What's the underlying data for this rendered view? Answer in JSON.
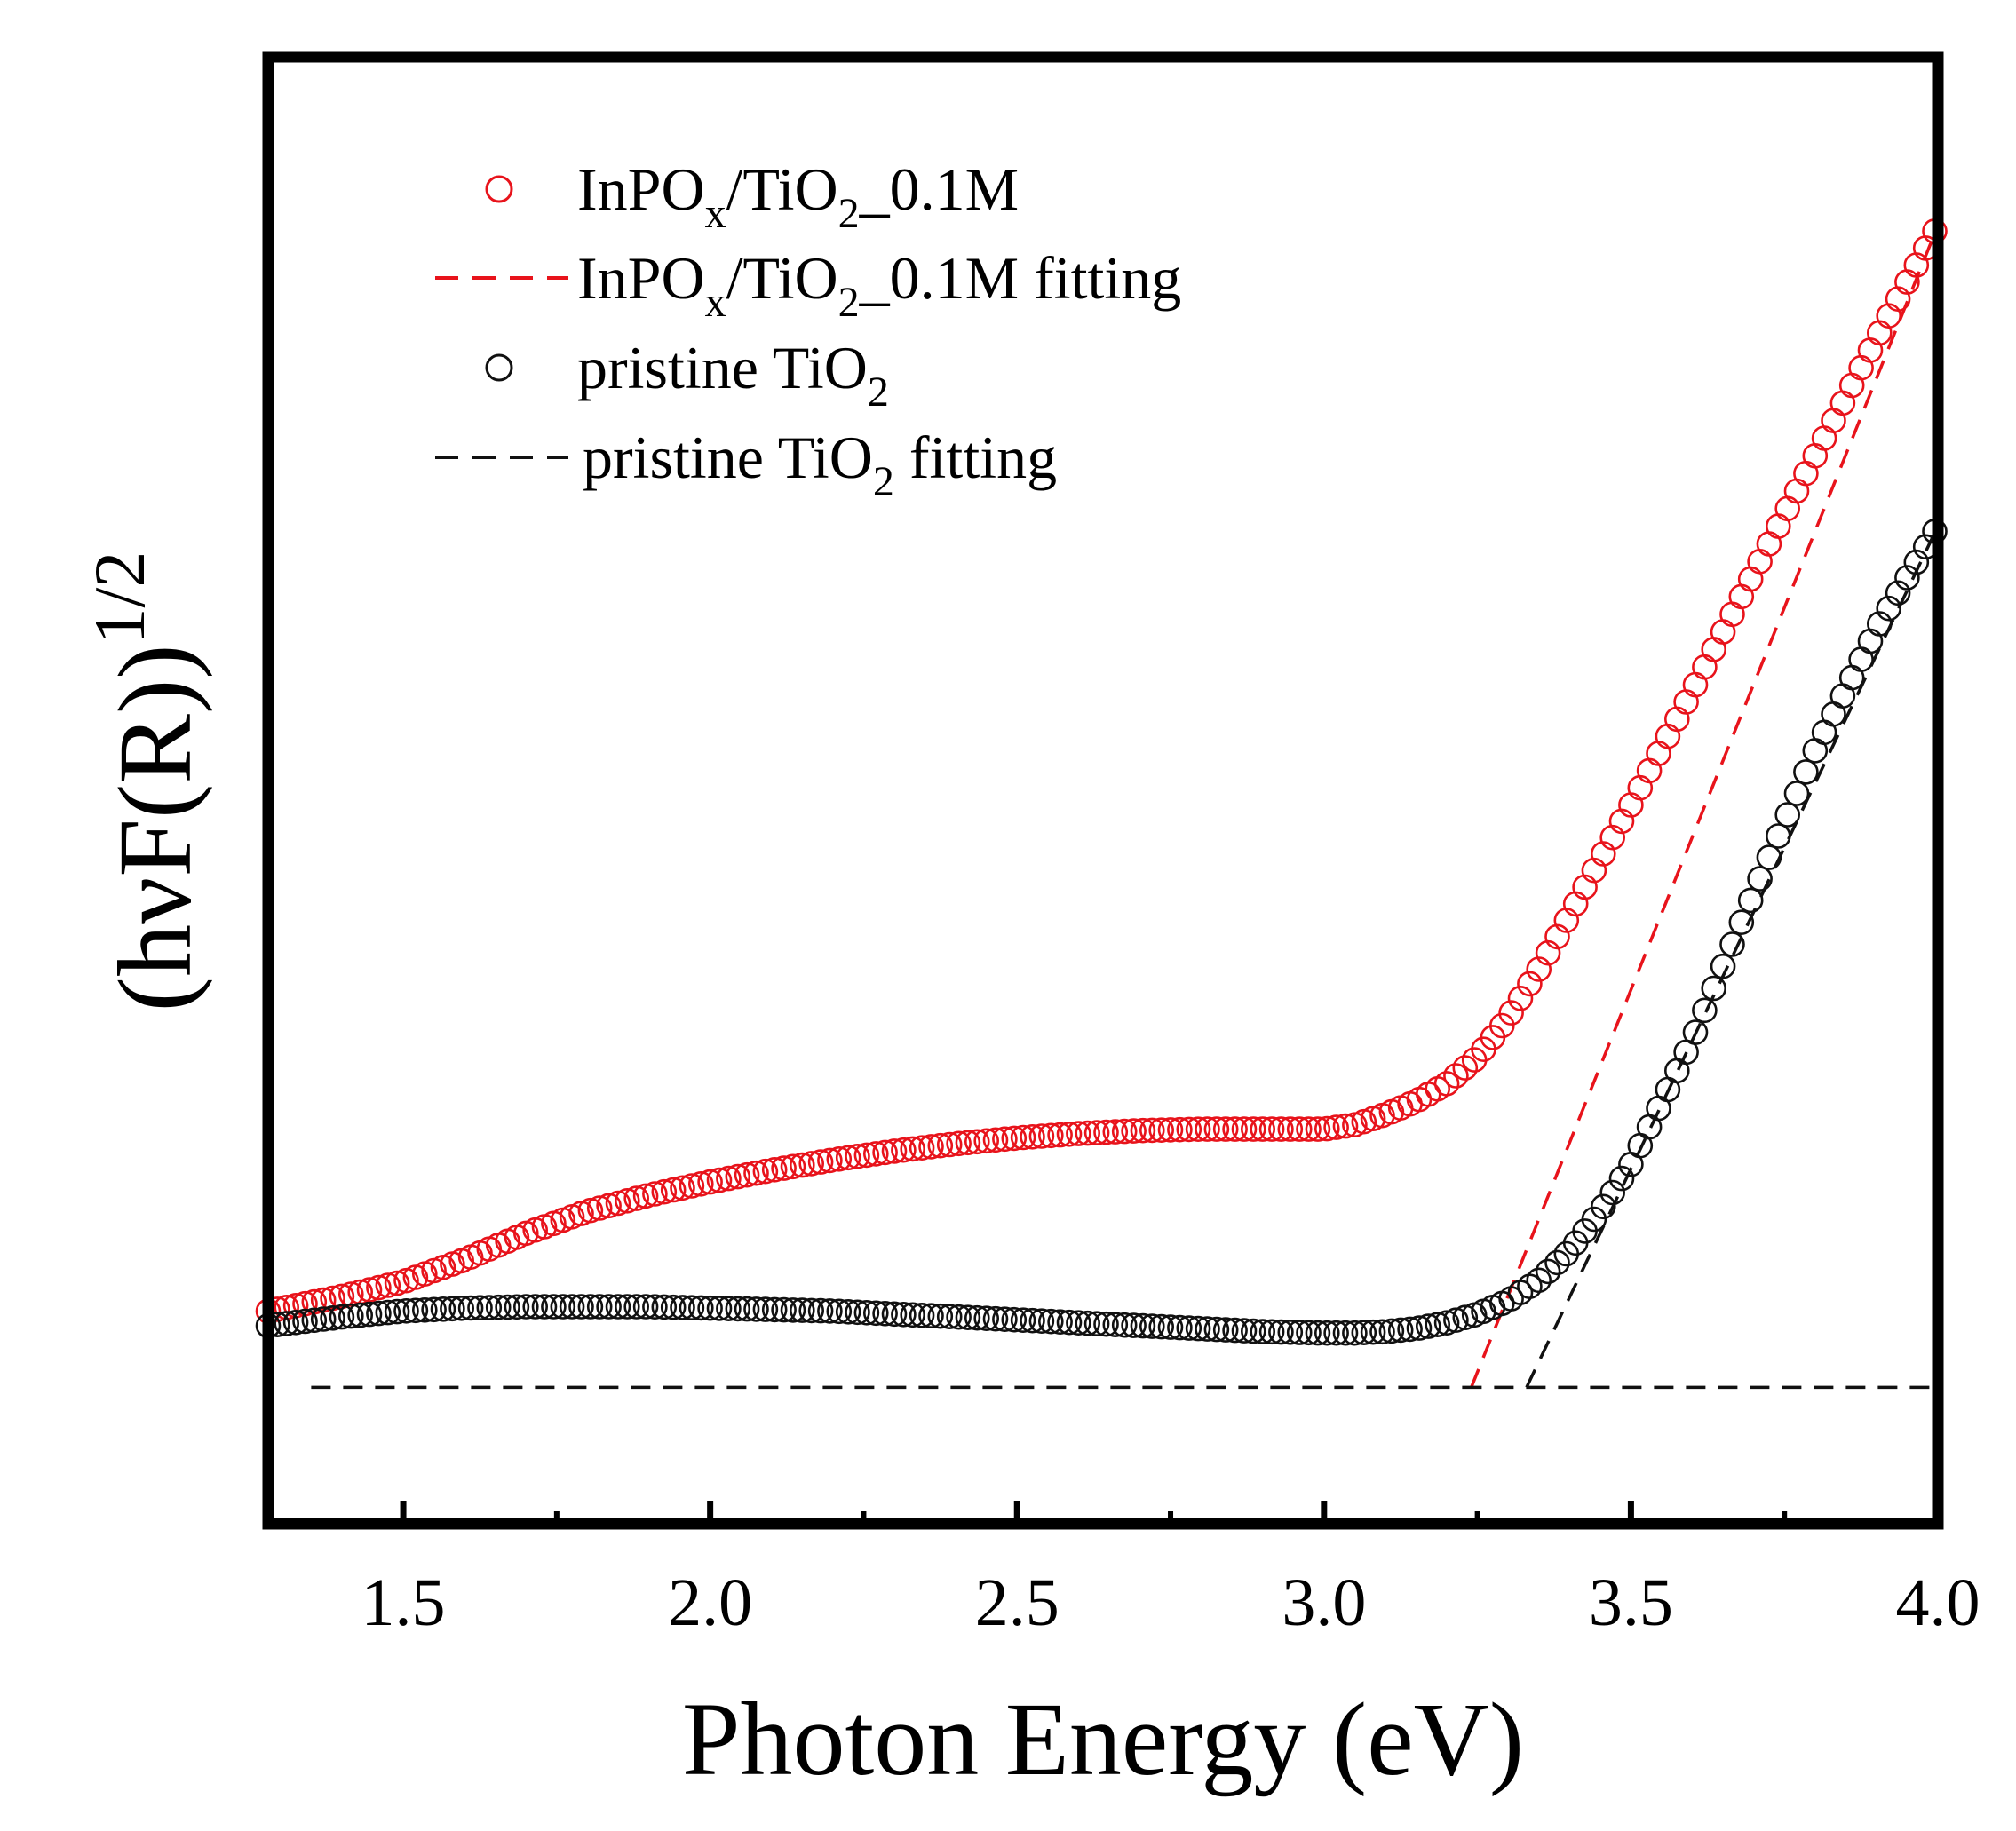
{
  "chart_data": {
    "type": "scatter",
    "title": "",
    "xlabel": "Photon Energy (eV)",
    "ylabel": {
      "main": "(hνF(R))",
      "superscript": "1/2"
    },
    "xlim": [
      1.28,
      4.0
    ],
    "ylim": [
      0,
      1.0
    ],
    "x_major_ticks": [
      1.5,
      2.0,
      2.5,
      3.0,
      3.5,
      4.0
    ],
    "x_tick_labels": [
      "1.5",
      "2.0",
      "2.5",
      "3.0",
      "3.5",
      "4.0"
    ],
    "x_minor_ticks": [
      1.75,
      2.25,
      2.75,
      3.25,
      3.75
    ],
    "y_tick_labels_shown": false,
    "grid": false,
    "legend_position": "top-left",
    "colors": {
      "red": "#e8131b",
      "black": "#111111"
    },
    "series": [
      {
        "name": "InPOx/TiO2_0.1M",
        "marker": "open-circle",
        "color": "#e8131b",
        "x_range": [
          1.28,
          4.0
        ],
        "x_step": 0.015,
        "profile_x": [
          1.28,
          1.4,
          1.5,
          1.6,
          1.7,
          1.8,
          1.9,
          2.0,
          2.1,
          2.2,
          2.3,
          2.4,
          2.5,
          2.6,
          2.7,
          2.8,
          2.9,
          3.0,
          3.05,
          3.1,
          3.15,
          3.2,
          3.25,
          3.3,
          3.35,
          3.4,
          3.45,
          3.5,
          3.6,
          3.7,
          3.8,
          3.9,
          4.0
        ],
        "profile_y": [
          0.145,
          0.155,
          0.165,
          0.18,
          0.198,
          0.213,
          0.224,
          0.233,
          0.241,
          0.248,
          0.254,
          0.259,
          0.263,
          0.266,
          0.268,
          0.269,
          0.269,
          0.269,
          0.272,
          0.279,
          0.288,
          0.3,
          0.318,
          0.345,
          0.378,
          0.415,
          0.453,
          0.49,
          0.568,
          0.648,
          0.728,
          0.808,
          0.885
        ]
      },
      {
        "name": "InPOx/TiO2_0.1M fitting",
        "style": "dashed",
        "color": "#e8131b",
        "x": [
          3.24,
          4.0
        ],
        "y": [
          0.093,
          0.885
        ]
      },
      {
        "name": "pristine TiO2",
        "marker": "open-circle",
        "color": "#111111",
        "x_range": [
          1.28,
          4.0
        ],
        "x_step": 0.015,
        "profile_x": [
          1.28,
          1.4,
          1.5,
          1.6,
          1.7,
          1.8,
          1.9,
          2.0,
          2.2,
          2.4,
          2.6,
          2.8,
          2.9,
          3.0,
          3.05,
          3.1,
          3.15,
          3.2,
          3.25,
          3.3,
          3.35,
          3.4,
          3.45,
          3.5,
          3.6,
          3.7,
          3.8,
          3.9,
          4.0
        ],
        "profile_y": [
          0.135,
          0.141,
          0.145,
          0.147,
          0.148,
          0.148,
          0.148,
          0.147,
          0.145,
          0.141,
          0.137,
          0.133,
          0.131,
          0.13,
          0.13,
          0.131,
          0.133,
          0.137,
          0.143,
          0.152,
          0.166,
          0.186,
          0.213,
          0.245,
          0.33,
          0.43,
          0.527,
          0.61,
          0.68
        ]
      },
      {
        "name": "pristine TiO2 fitting",
        "style": "dashed",
        "color": "#111111",
        "x": [
          3.33,
          4.0
        ],
        "y": [
          0.093,
          0.68
        ]
      },
      {
        "name": "baseline",
        "style": "dashed",
        "color": "#111111",
        "x": [
          1.35,
          4.0
        ],
        "y": [
          0.093,
          0.093
        ]
      }
    ],
    "legend": [
      {
        "label": {
          "a": "InPO",
          "b": "x",
          "c": "/TiO",
          "d": "2",
          "e": "_0.1M"
        },
        "kind": "marker",
        "color": "#e8131b"
      },
      {
        "label": {
          "a": "InPO",
          "b": "x",
          "c": "/TiO",
          "d": "2",
          "e": "_0.1M fitting"
        },
        "kind": "dash",
        "color": "#e8131b"
      },
      {
        "label": {
          "a": "pristine TiO",
          "d": "2"
        },
        "kind": "marker",
        "color": "#111111"
      },
      {
        "label": {
          "a": "pristine TiO",
          "d": "2",
          "e": " fitting"
        },
        "kind": "dash",
        "color": "#111111"
      }
    ]
  }
}
